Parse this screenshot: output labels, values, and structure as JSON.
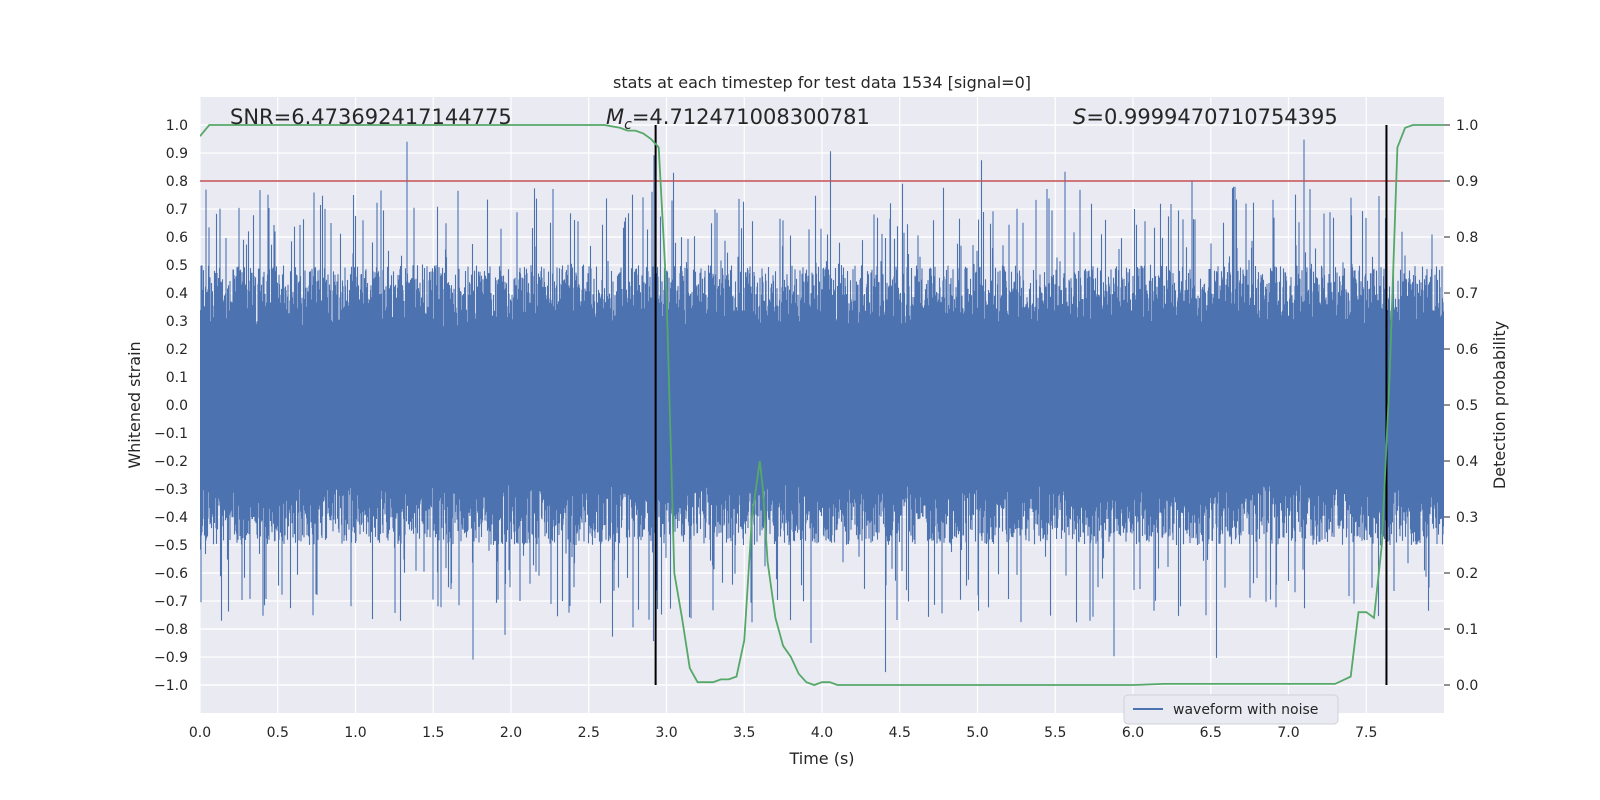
{
  "chart_data": {
    "type": "line",
    "title": "stats at each timestep for test data 1534 [signal=0]",
    "xlabel": "Time (s)",
    "ylabel": "Whitened strain",
    "ylabel_right": "Detection probability",
    "xlim": [
      0,
      8
    ],
    "ylim": [
      -1.1,
      1.1
    ],
    "ylim_right": [
      -0.05,
      1.05
    ],
    "x_ticks": [
      "0.0",
      "0.5",
      "1.0",
      "1.5",
      "2.0",
      "2.5",
      "3.0",
      "3.5",
      "4.0",
      "4.5",
      "5.0",
      "5.5",
      "6.0",
      "6.5",
      "7.0",
      "7.5"
    ],
    "y_ticks": [
      "1.0",
      "0.9",
      "0.8",
      "0.7",
      "0.6",
      "0.5",
      "0.4",
      "0.3",
      "0.2",
      "0.1",
      "0.0",
      "−0.1",
      "−0.2",
      "−0.3",
      "−0.4",
      "−0.5",
      "−0.6",
      "−0.7",
      "−0.8",
      "−0.9",
      "−1.0"
    ],
    "y_ticks_right": [
      "1.0",
      "0.9",
      "0.8",
      "0.7",
      "0.6",
      "0.5",
      "0.4",
      "0.3",
      "0.2",
      "0.1",
      "0.0"
    ],
    "grid": true,
    "legend_position": "lower-right",
    "colors": {
      "background": "#eaeaf2",
      "waveform": "#4c72b0",
      "probability": "#55a868",
      "threshold": "#c44e52",
      "markers": "#000000",
      "grid": "#ffffff"
    },
    "annotations": {
      "snr_prefix": "SNR",
      "snr_value": "=6.473692417144775",
      "mc_symbol": "M",
      "mc_subscript": "c",
      "mc_value": "=4.712471008300781",
      "s_symbol": "S",
      "s_value": "=0.9999470710754395"
    },
    "series": [
      {
        "name": "waveform with noise",
        "axis": "left",
        "description_range": [
          -1.0,
          1.0
        ]
      },
      {
        "axis": "right",
        "x": [
          0.0,
          0.06,
          0.1,
          0.2,
          0.5,
          1.0,
          1.5,
          2.0,
          2.5,
          2.6,
          2.7,
          2.75,
          2.8,
          2.85,
          2.9,
          2.95,
          3.0,
          3.03,
          3.05,
          3.1,
          3.15,
          3.2,
          3.25,
          3.3,
          3.35,
          3.4,
          3.45,
          3.5,
          3.55,
          3.6,
          3.62,
          3.65,
          3.7,
          3.75,
          3.8,
          3.85,
          3.9,
          3.95,
          4.0,
          4.05,
          4.1,
          4.2,
          4.3,
          4.5,
          4.8,
          5.0,
          5.5,
          6.0,
          6.2,
          6.5,
          7.0,
          7.3,
          7.4,
          7.45,
          7.5,
          7.55,
          7.6,
          7.65,
          7.7,
          7.75,
          7.8,
          8.0
        ],
        "y": [
          0.98,
          1.0,
          1.0,
          1.0,
          1.0,
          1.0,
          1.0,
          1.0,
          1.0,
          1.0,
          0.995,
          0.99,
          0.99,
          0.985,
          0.975,
          0.96,
          0.7,
          0.4,
          0.2,
          0.12,
          0.03,
          0.005,
          0.005,
          0.005,
          0.01,
          0.01,
          0.015,
          0.08,
          0.3,
          0.4,
          0.35,
          0.22,
          0.12,
          0.07,
          0.05,
          0.02,
          0.005,
          0.0,
          0.005,
          0.005,
          0.0,
          0.0,
          0.0,
          0.0,
          0.0,
          0.0,
          0.0,
          0.0,
          0.002,
          0.002,
          0.002,
          0.002,
          0.015,
          0.13,
          0.13,
          0.12,
          0.25,
          0.55,
          0.96,
          0.995,
          1.0,
          1.0
        ]
      }
    ],
    "threshold": {
      "axis": "right",
      "value": 0.9
    },
    "vertical_markers": [
      2.93,
      7.63
    ]
  }
}
